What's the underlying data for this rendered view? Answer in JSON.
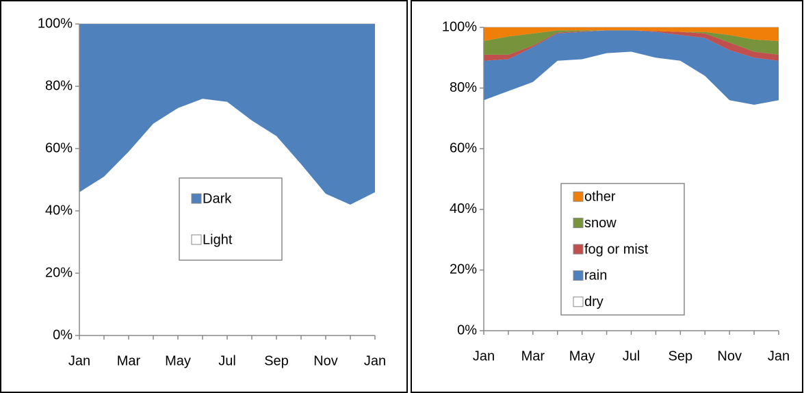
{
  "chart_data": [
    {
      "type": "area",
      "stacked": true,
      "legend": "center",
      "grid": true,
      "categories": [
        "Jan",
        null,
        "Mar",
        null,
        "May",
        null,
        "Jul",
        null,
        "Sep",
        null,
        "Nov",
        null,
        "Jan"
      ],
      "ylim": [
        0,
        100
      ],
      "yticks": [
        {
          "value": 0,
          "label": "0%"
        },
        {
          "value": 20,
          "label": "20%"
        },
        {
          "value": 40,
          "label": "40%"
        },
        {
          "value": 60,
          "label": "60%"
        },
        {
          "value": 80,
          "label": "80%"
        },
        {
          "value": 100,
          "label": "100%"
        }
      ],
      "series": [
        {
          "name": "Light",
          "color": "#ffffff",
          "values": [
            46,
            51,
            59,
            68,
            73,
            76,
            75,
            69,
            64,
            55,
            45.5,
            42,
            46
          ]
        },
        {
          "name": "Dark",
          "color": "#4f81bd",
          "values": [
            54,
            49,
            41,
            32,
            27,
            24,
            25,
            31,
            36,
            45,
            54.5,
            58,
            54
          ]
        }
      ]
    },
    {
      "type": "area",
      "stacked": true,
      "legend": "center",
      "grid": true,
      "categories": [
        "Jan",
        null,
        "Mar",
        null,
        "May",
        null,
        "Jul",
        null,
        "Sep",
        null,
        "Nov",
        null,
        "Jan"
      ],
      "ylim": [
        0,
        100
      ],
      "yticks": [
        {
          "value": 0,
          "label": "0%"
        },
        {
          "value": 20,
          "label": "20%"
        },
        {
          "value": 40,
          "label": "40%"
        },
        {
          "value": 60,
          "label": "60%"
        },
        {
          "value": 80,
          "label": "80%"
        },
        {
          "value": 100,
          "label": "100%"
        }
      ],
      "series": [
        {
          "name": "dry",
          "color": "#ffffff",
          "values": [
            76,
            79,
            82,
            89,
            89.5,
            91.5,
            92,
            90,
            89,
            84,
            76,
            74.5,
            76
          ]
        },
        {
          "name": "rain",
          "color": "#4f81bd",
          "values": [
            13,
            10.5,
            11.5,
            9,
            9,
            7.5,
            7,
            8.5,
            8.5,
            12.5,
            16.5,
            15.5,
            13
          ]
        },
        {
          "name": "fog or mist",
          "color": "#c0504d",
          "values": [
            2,
            1.5,
            0.5,
            0.3,
            0.2,
            0,
            0,
            0.3,
            1,
            1.5,
            2.5,
            2,
            2
          ]
        },
        {
          "name": "snow",
          "color": "#77933c",
          "values": [
            4.5,
            6,
            4,
            0.7,
            0.3,
            0,
            0,
            0,
            0,
            0.5,
            2.5,
            4,
            4.5
          ]
        },
        {
          "name": "other",
          "color": "#f07f09",
          "values": [
            4.5,
            3,
            2,
            1,
            1,
            1,
            1,
            1.2,
            1.5,
            1.5,
            2.5,
            4,
            4.5
          ]
        }
      ]
    }
  ]
}
